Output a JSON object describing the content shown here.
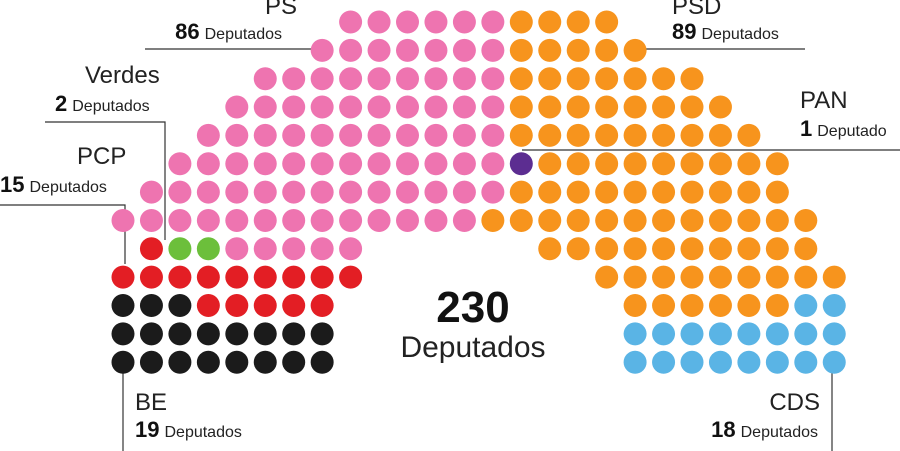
{
  "chart_data": {
    "type": "parliament",
    "total": 230,
    "total_label": "Deputados",
    "parties": [
      {
        "name": "BE",
        "seats": 19,
        "unit": "Deputados",
        "color": "#1b1b1b"
      },
      {
        "name": "PCP",
        "seats": 15,
        "unit": "Deputados",
        "color": "#e31e24"
      },
      {
        "name": "Verdes",
        "seats": 2,
        "unit": "Deputados",
        "color": "#6cbf3b"
      },
      {
        "name": "PS",
        "seats": 86,
        "unit": "Deputados",
        "color": "#ee74b0"
      },
      {
        "name": "PAN",
        "seats": 1,
        "unit": "Deputado",
        "color": "#5c2d91"
      },
      {
        "name": "PSD",
        "seats": 89,
        "unit": "Deputados",
        "color": "#f7941d"
      },
      {
        "name": "CDS",
        "seats": 18,
        "unit": "Deputados",
        "color": "#5ab4e5"
      }
    ]
  }
}
